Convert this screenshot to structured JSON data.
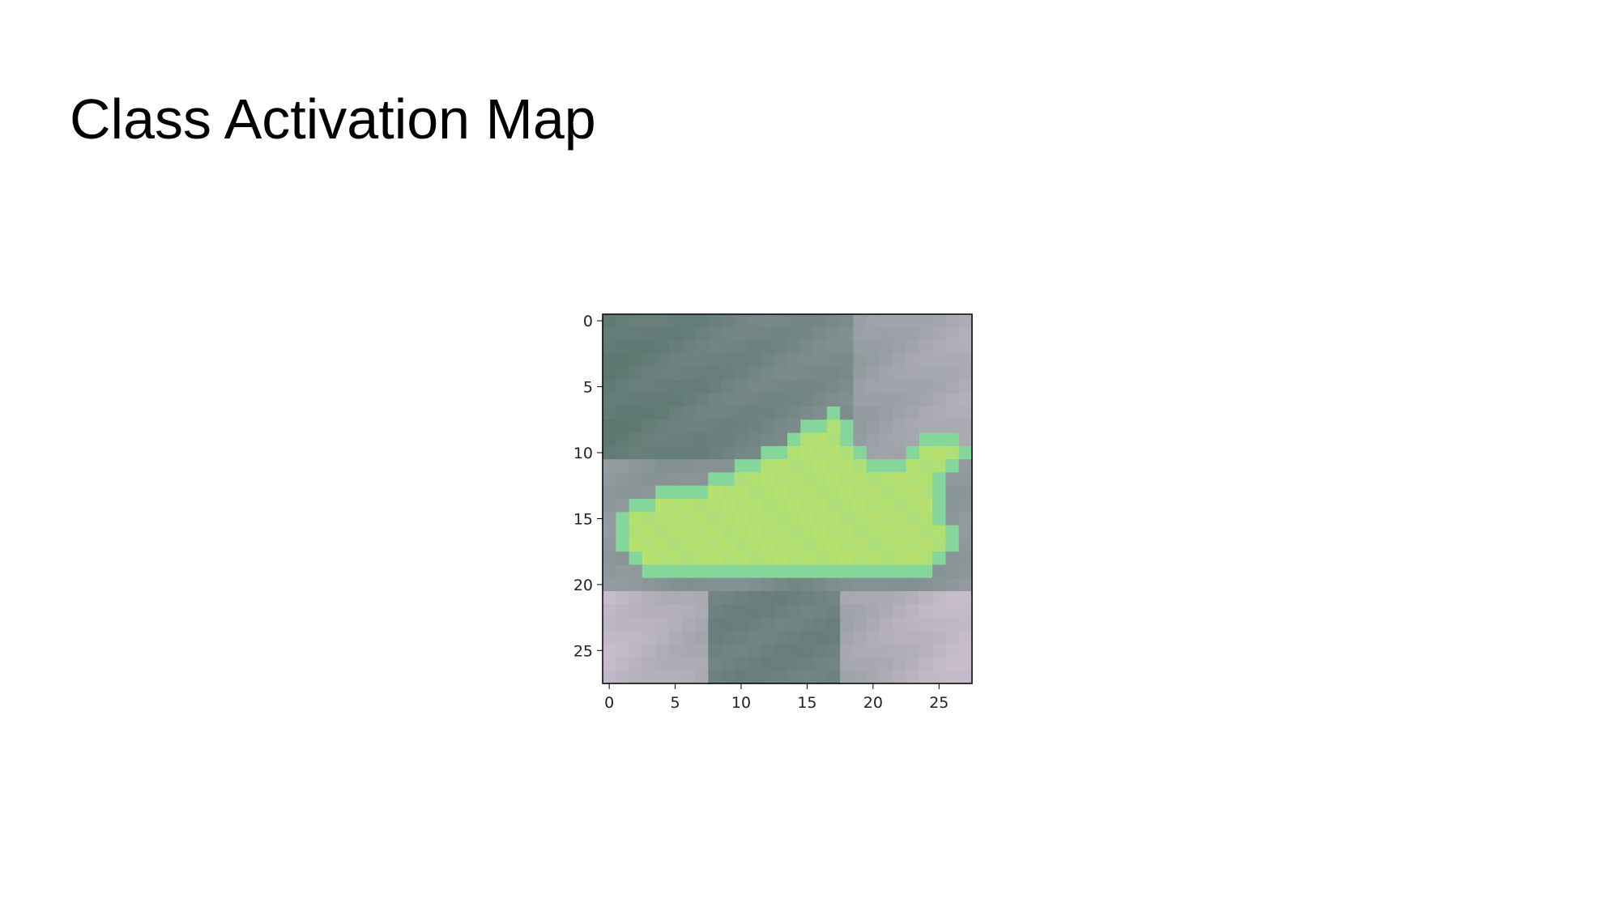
{
  "slide": {
    "title": "Class Activation Map"
  },
  "chart_data": {
    "type": "heatmap",
    "grid_size": [
      28,
      28
    ],
    "xlim": [
      -0.5,
      27.5
    ],
    "ylim": [
      27.5,
      -0.5
    ],
    "x_ticks": [
      0,
      5,
      10,
      15,
      20,
      25
    ],
    "y_ticks": [
      0,
      5,
      10,
      15,
      20,
      25
    ],
    "x_tick_labels": [
      "0",
      "5",
      "10",
      "15",
      "20",
      "25"
    ],
    "y_tick_labels": [
      "0",
      "5",
      "10",
      "15",
      "20",
      "25"
    ],
    "colors": {
      "shoe_light": "#b7e06e",
      "shoe_edge": "#85d69a",
      "background_dark": "#4e6e64",
      "background_light": "#c6bccb"
    },
    "shoe_mask_rows": {
      "7": [
        [
          17,
          17
        ]
      ],
      "8": [
        [
          15,
          18
        ]
      ],
      "9": [
        [
          14,
          18
        ],
        [
          24,
          26
        ]
      ],
      "10": [
        [
          12,
          19
        ],
        [
          23,
          27
        ]
      ],
      "11": [
        [
          10,
          26
        ]
      ],
      "12": [
        [
          8,
          25
        ]
      ],
      "13": [
        [
          4,
          25
        ]
      ],
      "14": [
        [
          2,
          25
        ]
      ],
      "15": [
        [
          1,
          25
        ]
      ],
      "16": [
        [
          1,
          26
        ]
      ],
      "17": [
        [
          1,
          26
        ]
      ],
      "18": [
        [
          2,
          25
        ]
      ],
      "19": [
        [
          3,
          24
        ]
      ]
    }
  }
}
